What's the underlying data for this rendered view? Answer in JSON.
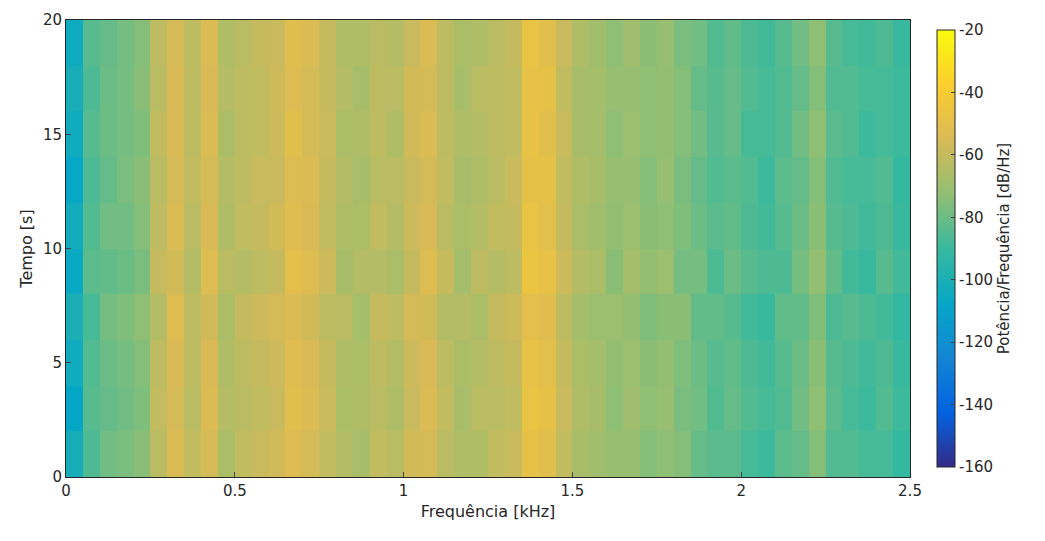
{
  "chart_data": {
    "type": "heatmap",
    "x_label": "Frequência [kHz]",
    "y_label": "Tempo [s]",
    "colorbar_label": "Potência/Frequência [dB/Hz]",
    "xlim": [
      0,
      2.5
    ],
    "xticks": [
      0,
      0.5,
      1,
      1.5,
      2,
      2.5
    ],
    "ylim": [
      0,
      20
    ],
    "yticks": [
      0,
      5,
      10,
      15,
      20
    ],
    "color_range": [
      -160,
      -20
    ],
    "color_ticks": [
      -160,
      -140,
      -120,
      -100,
      -80,
      -60,
      -40,
      -20
    ],
    "x": [
      0.025,
      0.075,
      0.125,
      0.175,
      0.225,
      0.275,
      0.325,
      0.375,
      0.425,
      0.475,
      0.525,
      0.575,
      0.625,
      0.675,
      0.725,
      0.775,
      0.825,
      0.875,
      0.925,
      0.975,
      1.025,
      1.075,
      1.125,
      1.175,
      1.225,
      1.275,
      1.325,
      1.375,
      1.425,
      1.475,
      1.525,
      1.575,
      1.625,
      1.675,
      1.725,
      1.775,
      1.825,
      1.875,
      1.925,
      1.975,
      2.025,
      2.075,
      2.125,
      2.175,
      2.225,
      2.275,
      2.325,
      2.375,
      2.425,
      2.475
    ],
    "y": [
      1,
      3,
      5,
      7,
      9,
      11,
      13,
      15,
      17,
      19
    ],
    "cells": [
      [
        -102,
        -86,
        -79,
        -77,
        -74,
        -63,
        -54,
        -61,
        -56,
        -66,
        -61,
        -59,
        -57,
        -53,
        -56,
        -61,
        -64,
        -67,
        -61,
        -63,
        -57,
        -56,
        -63,
        -65,
        -65,
        -61,
        -59,
        -49,
        -51,
        -61,
        -67,
        -69,
        -71,
        -71,
        -75,
        -73,
        -75,
        -81,
        -83,
        -83,
        -87,
        -89,
        -83,
        -81,
        -75,
        -85,
        -85,
        -87,
        -87,
        -91
      ],
      [
        -108,
        -84,
        -81,
        -79,
        -76,
        -61,
        -56,
        -63,
        -54,
        -64,
        -63,
        -61,
        -59,
        -51,
        -54,
        -59,
        -66,
        -65,
        -63,
        -65,
        -59,
        -54,
        -61,
        -67,
        -63,
        -63,
        -61,
        -47,
        -49,
        -59,
        -65,
        -67,
        -73,
        -69,
        -73,
        -71,
        -77,
        -79,
        -85,
        -81,
        -85,
        -87,
        -85,
        -79,
        -73,
        -83,
        -87,
        -89,
        -85,
        -89
      ],
      [
        -104,
        -85,
        -80,
        -78,
        -75,
        -62,
        -55,
        -62,
        -55,
        -65,
        -62,
        -60,
        -58,
        -52,
        -55,
        -60,
        -65,
        -66,
        -62,
        -64,
        -58,
        -55,
        -62,
        -66,
        -64,
        -62,
        -60,
        -48,
        -50,
        -60,
        -66,
        -68,
        -72,
        -70,
        -74,
        -72,
        -76,
        -80,
        -84,
        -82,
        -86,
        -88,
        -84,
        -80,
        -74,
        -84,
        -86,
        -88,
        -86,
        -90
      ],
      [
        -100,
        -87,
        -78,
        -76,
        -73,
        -64,
        -53,
        -62,
        -57,
        -66,
        -60,
        -58,
        -56,
        -54,
        -57,
        -62,
        -63,
        -68,
        -60,
        -62,
        -56,
        -57,
        -64,
        -64,
        -66,
        -60,
        -58,
        -50,
        -52,
        -62,
        -68,
        -70,
        -70,
        -72,
        -76,
        -74,
        -74,
        -82,
        -82,
        -84,
        -88,
        -90,
        -82,
        -82,
        -76,
        -86,
        -84,
        -86,
        -88,
        -92
      ],
      [
        -106,
        -83,
        -82,
        -80,
        -77,
        -60,
        -57,
        -64,
        -53,
        -63,
        -64,
        -62,
        -60,
        -50,
        -53,
        -58,
        -67,
        -64,
        -64,
        -66,
        -60,
        -53,
        -60,
        -68,
        -62,
        -64,
        -62,
        -46,
        -48,
        -58,
        -64,
        -66,
        -74,
        -68,
        -72,
        -70,
        -78,
        -78,
        -86,
        -80,
        -84,
        -86,
        -86,
        -78,
        -72,
        -82,
        -88,
        -90,
        -84,
        -88
      ],
      [
        -103,
        -85,
        -79,
        -79,
        -75,
        -62,
        -54,
        -63,
        -55,
        -65,
        -61,
        -60,
        -57,
        -52,
        -55,
        -61,
        -65,
        -66,
        -61,
        -64,
        -58,
        -55,
        -63,
        -66,
        -64,
        -61,
        -60,
        -47,
        -50,
        -60,
        -66,
        -69,
        -72,
        -70,
        -74,
        -73,
        -76,
        -80,
        -83,
        -82,
        -86,
        -88,
        -84,
        -80,
        -74,
        -84,
        -86,
        -88,
        -86,
        -90
      ],
      [
        -107,
        -86,
        -81,
        -77,
        -74,
        -63,
        -56,
        -61,
        -56,
        -64,
        -62,
        -59,
        -59,
        -53,
        -54,
        -60,
        -64,
        -67,
        -63,
        -63,
        -59,
        -56,
        -61,
        -67,
        -65,
        -63,
        -59,
        -49,
        -49,
        -61,
        -65,
        -67,
        -71,
        -71,
        -75,
        -71,
        -77,
        -81,
        -85,
        -83,
        -85,
        -89,
        -83,
        -81,
        -75,
        -85,
        -87,
        -87,
        -85,
        -91
      ],
      [
        -104,
        -84,
        -80,
        -78,
        -76,
        -61,
        -55,
        -62,
        -54,
        -66,
        -62,
        -61,
        -58,
        -51,
        -56,
        -59,
        -66,
        -65,
        -62,
        -65,
        -57,
        -54,
        -62,
        -65,
        -64,
        -62,
        -61,
        -48,
        -51,
        -59,
        -67,
        -68,
        -73,
        -70,
        -73,
        -72,
        -75,
        -79,
        -84,
        -81,
        -87,
        -87,
        -85,
        -79,
        -73,
        -83,
        -85,
        -89,
        -87,
        -89
      ],
      [
        -101,
        -86,
        -80,
        -78,
        -74,
        -63,
        -55,
        -62,
        -55,
        -64,
        -62,
        -61,
        -58,
        -53,
        -56,
        -60,
        -64,
        -67,
        -62,
        -63,
        -57,
        -56,
        -62,
        -67,
        -63,
        -62,
        -61,
        -48,
        -49,
        -61,
        -67,
        -68,
        -71,
        -71,
        -73,
        -72,
        -75,
        -81,
        -84,
        -81,
        -85,
        -87,
        -85,
        -81,
        -75,
        -85,
        -85,
        -87,
        -87,
        -89
      ],
      [
        -105,
        -84,
        -81,
        -78,
        -75,
        -62,
        -56,
        -62,
        -54,
        -65,
        -63,
        -60,
        -59,
        -52,
        -54,
        -60,
        -65,
        -65,
        -63,
        -64,
        -59,
        -54,
        -62,
        -66,
        -65,
        -63,
        -60,
        -47,
        -51,
        -59,
        -65,
        -69,
        -73,
        -69,
        -74,
        -71,
        -77,
        -79,
        -85,
        -82,
        -86,
        -88,
        -84,
        -79,
        -73,
        -84,
        -87,
        -88,
        -86,
        -90
      ]
    ]
  }
}
